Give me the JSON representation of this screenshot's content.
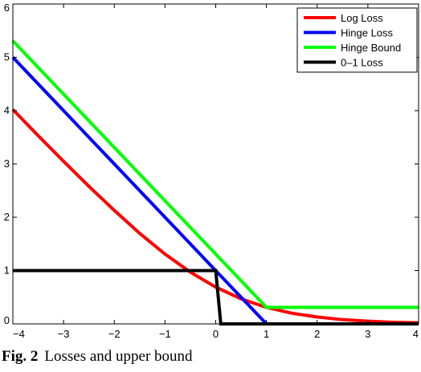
{
  "chart_data": {
    "type": "line",
    "title": "",
    "xlabel": "",
    "ylabel": "",
    "xlim": [
      -4,
      4
    ],
    "ylim": [
      0,
      6
    ],
    "xticks": [
      -4,
      -3,
      -2,
      -1,
      0,
      1,
      2,
      3,
      4
    ],
    "xtick_labels": [
      "−4",
      "−3",
      "−2",
      "−1",
      "0",
      "1",
      "2",
      "3",
      "4"
    ],
    "yticks": [
      0,
      1,
      2,
      3,
      4,
      5,
      6
    ],
    "ytick_labels": [
      "0",
      "1",
      "2",
      "3",
      "4",
      "5",
      "6"
    ],
    "grid": false,
    "legend_position": "top-right",
    "series": [
      {
        "name": "Log Loss",
        "color": "#ff0000",
        "x": [
          -4,
          -3.5,
          -3,
          -2.5,
          -2,
          -1.5,
          -1,
          -0.5,
          0,
          0.5,
          1,
          1.5,
          2,
          2.5,
          3,
          3.5,
          4
        ],
        "y": [
          4.02,
          3.53,
          3.05,
          2.58,
          2.13,
          1.7,
          1.31,
          0.97,
          0.69,
          0.47,
          0.31,
          0.2,
          0.13,
          0.08,
          0.05,
          0.03,
          0.02
        ]
      },
      {
        "name": "Hinge Loss",
        "color": "#0000ff",
        "x": [
          -4,
          1,
          4
        ],
        "y": [
          5,
          0,
          0
        ]
      },
      {
        "name": "Hinge Bound",
        "color": "#00ff00",
        "x": [
          -4,
          1,
          4
        ],
        "y": [
          5.31,
          0.31,
          0.31
        ]
      },
      {
        "name": "0–1 Loss",
        "color": "#000000",
        "x": [
          -4,
          0,
          0.1,
          4
        ],
        "y": [
          1,
          1,
          0,
          0
        ]
      }
    ]
  },
  "caption": {
    "prefix": "Fig. 2",
    "text": "Losses and upper bound"
  }
}
